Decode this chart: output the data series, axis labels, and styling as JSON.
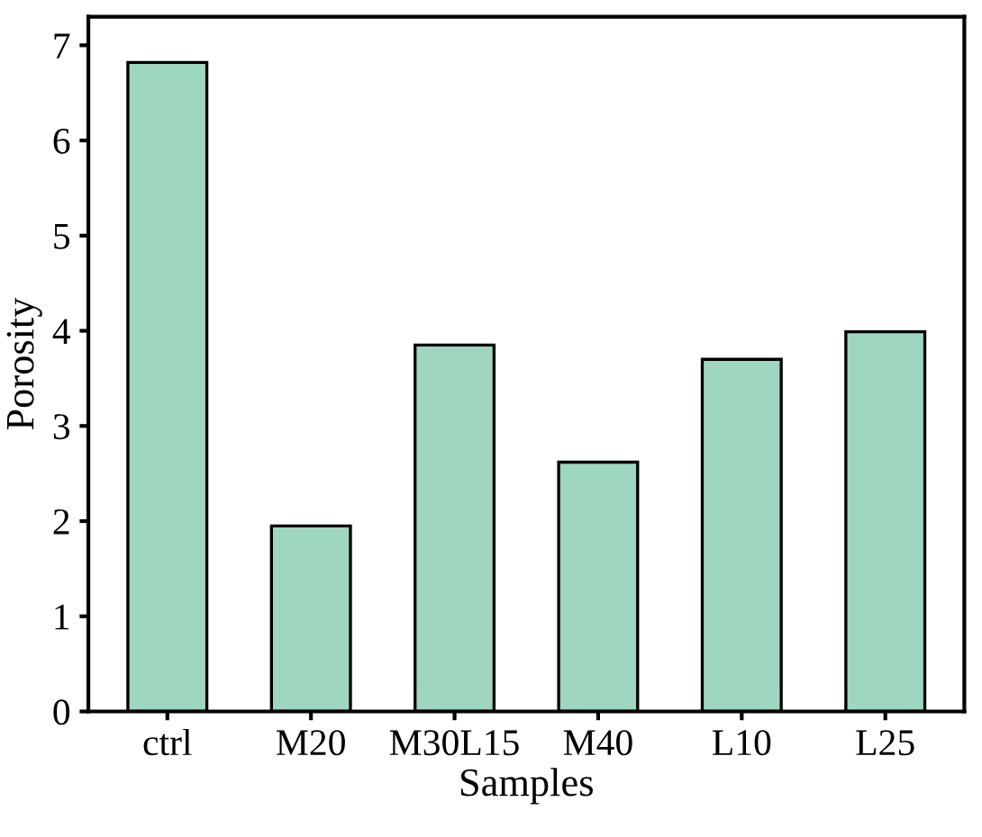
{
  "chart_data": {
    "type": "bar",
    "xlabel": "Samples",
    "ylabel": "Porosity",
    "categories": [
      "ctrl",
      "M20",
      "M30L15",
      "M40",
      "L10",
      "L25"
    ],
    "values": [
      6.82,
      1.95,
      3.85,
      2.62,
      3.7,
      3.99
    ],
    "color": "#9fd6c0",
    "ylim": [
      0,
      7.3
    ],
    "yticks": [
      0,
      1,
      2,
      3,
      4,
      5,
      6,
      7
    ],
    "grid": false
  }
}
